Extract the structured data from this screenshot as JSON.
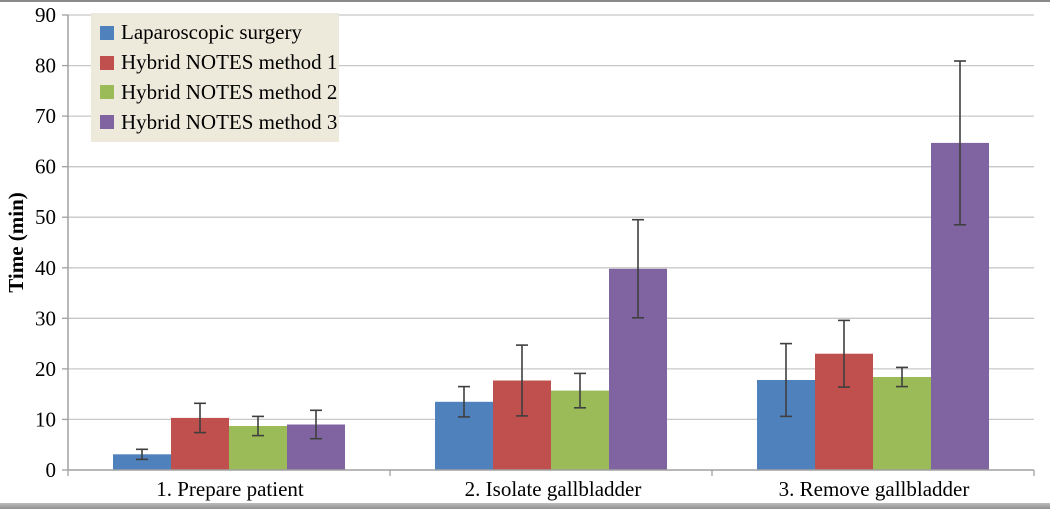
{
  "chart_data": {
    "type": "bar",
    "title": "",
    "ylabel": "Time (min)",
    "xlabel": "",
    "ylim": [
      0,
      90
    ],
    "ytick_step": 10,
    "yticks": [
      0,
      10,
      20,
      30,
      40,
      50,
      60,
      70,
      80,
      90
    ],
    "grid": "horizontal",
    "error_bars": true,
    "legend_position": "top-left",
    "categories": [
      "1. Prepare patient",
      "2. Isolate gallbladder",
      "3. Remove  gallbladder"
    ],
    "series": [
      {
        "name": "Laparoscopic surgery",
        "color": "#4f81bd",
        "values": [
          3.1,
          13.5,
          17.8
        ],
        "errors": [
          1.0,
          3.0,
          7.2
        ]
      },
      {
        "name": "Hybrid NOTES method 1",
        "color": "#c0504d",
        "values": [
          10.3,
          17.7,
          23.0
        ],
        "errors": [
          2.9,
          7.0,
          6.6
        ]
      },
      {
        "name": "Hybrid NOTES method 2",
        "color": "#9bbb59",
        "values": [
          8.7,
          15.7,
          18.4
        ],
        "errors": [
          1.9,
          3.4,
          1.9
        ]
      },
      {
        "name": "Hybrid NOTES method 3",
        "color": "#8064a2",
        "values": [
          9.0,
          39.8,
          64.7
        ],
        "errors": [
          2.8,
          9.7,
          16.2
        ]
      }
    ]
  },
  "colors": {
    "gridline": "#c8c8c8",
    "axis": "#a0a0a0",
    "error_bar": "#3f3f3f",
    "legend_bg": "#eeeadb",
    "text": "#000000",
    "figure_bg": "#ffffff"
  }
}
